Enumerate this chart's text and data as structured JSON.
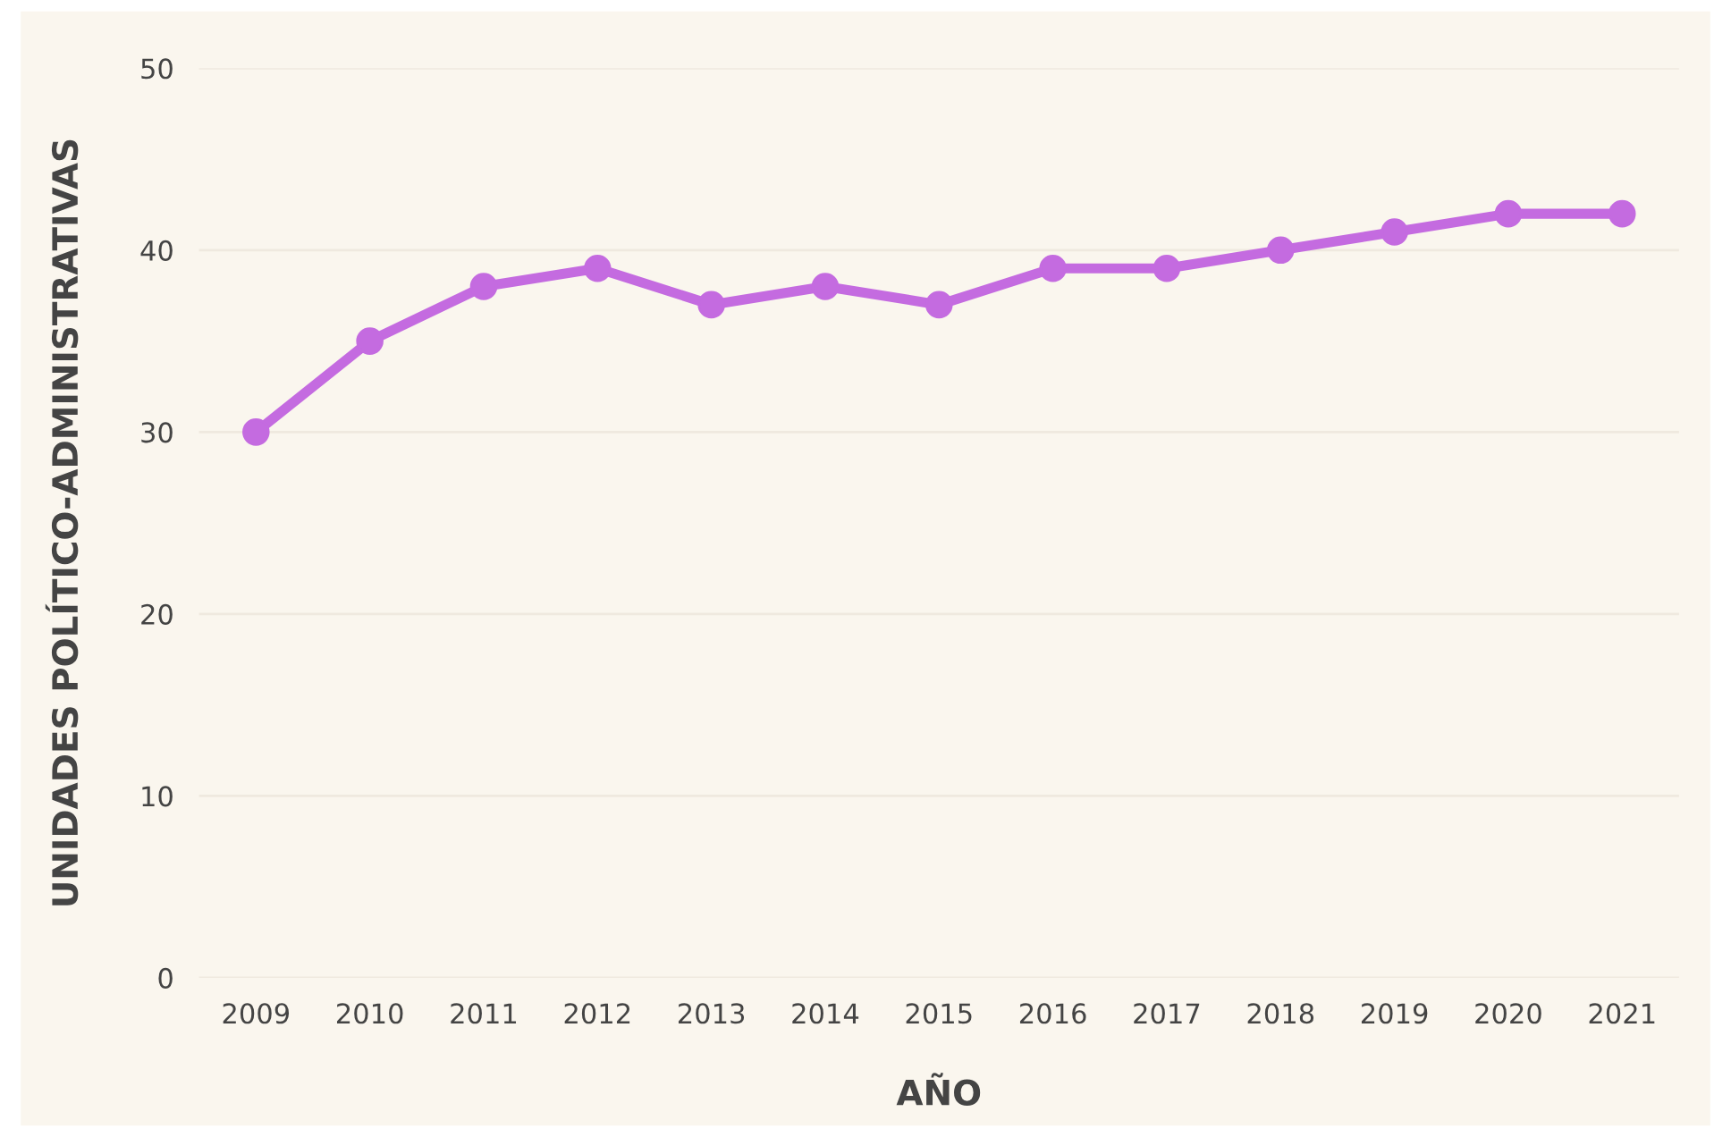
{
  "chart_data": {
    "type": "line",
    "xlabel": "AÑO",
    "ylabel": "UNIDADES POLÍTICO-ADMINISTRATIVAS",
    "categories": [
      "2009",
      "2010",
      "2011",
      "2012",
      "2013",
      "2014",
      "2015",
      "2016",
      "2017",
      "2018",
      "2019",
      "2020",
      "2021"
    ],
    "series": [
      {
        "color": "#c46be0",
        "values": [
          30,
          35,
          38,
          39,
          37,
          38,
          37,
          39,
          39,
          40,
          41,
          42,
          42
        ]
      }
    ],
    "ylim": [
      0,
      50
    ],
    "yticks": [
      0,
      10,
      20,
      30,
      40,
      50
    ],
    "grid": "y",
    "marker": "circle",
    "line_style": "solid",
    "legend": false
  }
}
